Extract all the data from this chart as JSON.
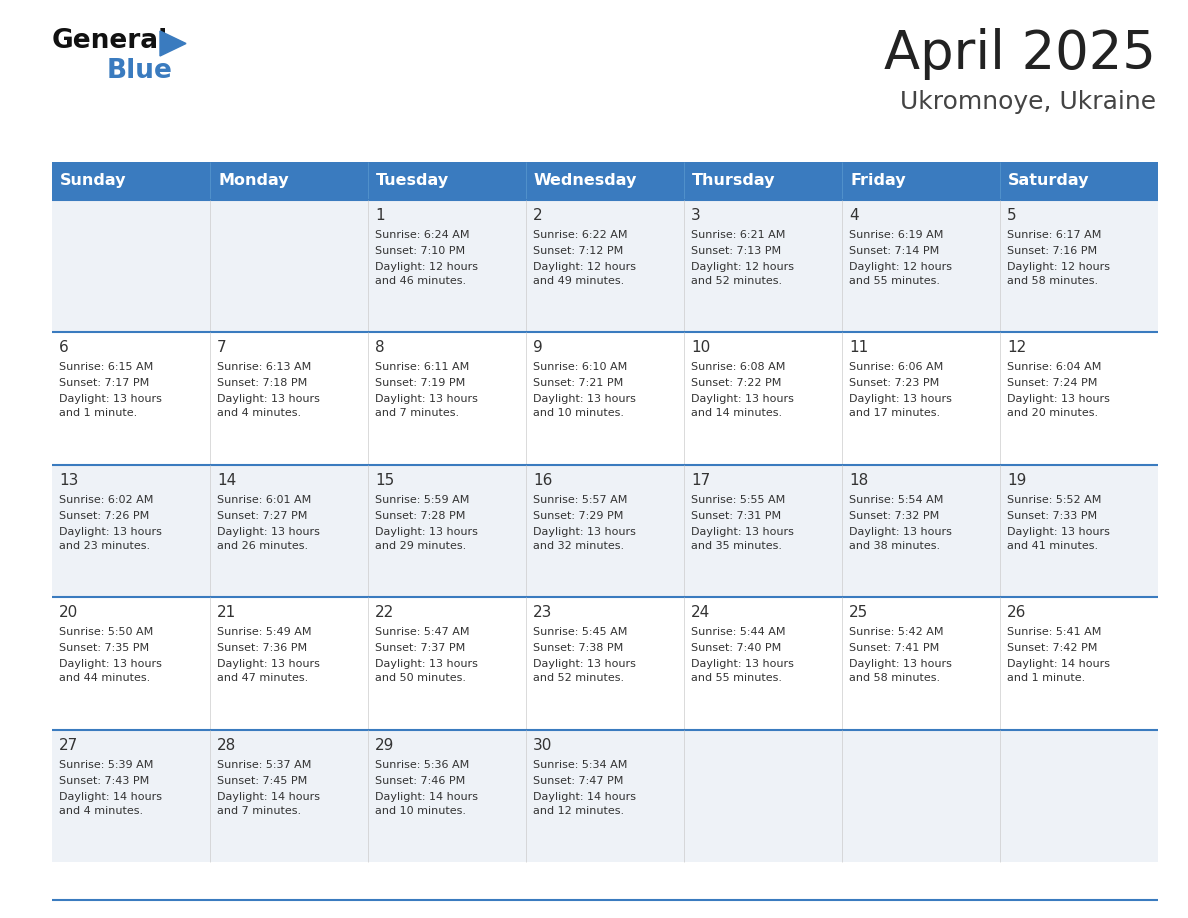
{
  "title": "April 2025",
  "subtitle": "Ukromnoye, Ukraine",
  "days_of_week": [
    "Sunday",
    "Monday",
    "Tuesday",
    "Wednesday",
    "Thursday",
    "Friday",
    "Saturday"
  ],
  "header_bg": "#3a7bbf",
  "header_text": "#ffffff",
  "row_bg_odd": "#eef2f7",
  "row_bg_even": "#ffffff",
  "cell_text_color": "#333333",
  "title_color": "#222222",
  "subtitle_color": "#444444",
  "divider_color": "#3a7bbf",
  "logo_black": "#111111",
  "logo_blue": "#2a7bbf",
  "calendar": [
    [
      null,
      null,
      {
        "day": 1,
        "sunrise": "6:24 AM",
        "sunset": "7:10 PM",
        "daylight": "12 hours and 46 minutes."
      },
      {
        "day": 2,
        "sunrise": "6:22 AM",
        "sunset": "7:12 PM",
        "daylight": "12 hours and 49 minutes."
      },
      {
        "day": 3,
        "sunrise": "6:21 AM",
        "sunset": "7:13 PM",
        "daylight": "12 hours and 52 minutes."
      },
      {
        "day": 4,
        "sunrise": "6:19 AM",
        "sunset": "7:14 PM",
        "daylight": "12 hours and 55 minutes."
      },
      {
        "day": 5,
        "sunrise": "6:17 AM",
        "sunset": "7:16 PM",
        "daylight": "12 hours and 58 minutes."
      }
    ],
    [
      {
        "day": 6,
        "sunrise": "6:15 AM",
        "sunset": "7:17 PM",
        "daylight": "13 hours and 1 minute."
      },
      {
        "day": 7,
        "sunrise": "6:13 AM",
        "sunset": "7:18 PM",
        "daylight": "13 hours and 4 minutes."
      },
      {
        "day": 8,
        "sunrise": "6:11 AM",
        "sunset": "7:19 PM",
        "daylight": "13 hours and 7 minutes."
      },
      {
        "day": 9,
        "sunrise": "6:10 AM",
        "sunset": "7:21 PM",
        "daylight": "13 hours and 10 minutes."
      },
      {
        "day": 10,
        "sunrise": "6:08 AM",
        "sunset": "7:22 PM",
        "daylight": "13 hours and 14 minutes."
      },
      {
        "day": 11,
        "sunrise": "6:06 AM",
        "sunset": "7:23 PM",
        "daylight": "13 hours and 17 minutes."
      },
      {
        "day": 12,
        "sunrise": "6:04 AM",
        "sunset": "7:24 PM",
        "daylight": "13 hours and 20 minutes."
      }
    ],
    [
      {
        "day": 13,
        "sunrise": "6:02 AM",
        "sunset": "7:26 PM",
        "daylight": "13 hours and 23 minutes."
      },
      {
        "day": 14,
        "sunrise": "6:01 AM",
        "sunset": "7:27 PM",
        "daylight": "13 hours and 26 minutes."
      },
      {
        "day": 15,
        "sunrise": "5:59 AM",
        "sunset": "7:28 PM",
        "daylight": "13 hours and 29 minutes."
      },
      {
        "day": 16,
        "sunrise": "5:57 AM",
        "sunset": "7:29 PM",
        "daylight": "13 hours and 32 minutes."
      },
      {
        "day": 17,
        "sunrise": "5:55 AM",
        "sunset": "7:31 PM",
        "daylight": "13 hours and 35 minutes."
      },
      {
        "day": 18,
        "sunrise": "5:54 AM",
        "sunset": "7:32 PM",
        "daylight": "13 hours and 38 minutes."
      },
      {
        "day": 19,
        "sunrise": "5:52 AM",
        "sunset": "7:33 PM",
        "daylight": "13 hours and 41 minutes."
      }
    ],
    [
      {
        "day": 20,
        "sunrise": "5:50 AM",
        "sunset": "7:35 PM",
        "daylight": "13 hours and 44 minutes."
      },
      {
        "day": 21,
        "sunrise": "5:49 AM",
        "sunset": "7:36 PM",
        "daylight": "13 hours and 47 minutes."
      },
      {
        "day": 22,
        "sunrise": "5:47 AM",
        "sunset": "7:37 PM",
        "daylight": "13 hours and 50 minutes."
      },
      {
        "day": 23,
        "sunrise": "5:45 AM",
        "sunset": "7:38 PM",
        "daylight": "13 hours and 52 minutes."
      },
      {
        "day": 24,
        "sunrise": "5:44 AM",
        "sunset": "7:40 PM",
        "daylight": "13 hours and 55 minutes."
      },
      {
        "day": 25,
        "sunrise": "5:42 AM",
        "sunset": "7:41 PM",
        "daylight": "13 hours and 58 minutes."
      },
      {
        "day": 26,
        "sunrise": "5:41 AM",
        "sunset": "7:42 PM",
        "daylight": "14 hours and 1 minute."
      }
    ],
    [
      {
        "day": 27,
        "sunrise": "5:39 AM",
        "sunset": "7:43 PM",
        "daylight": "14 hours and 4 minutes."
      },
      {
        "day": 28,
        "sunrise": "5:37 AM",
        "sunset": "7:45 PM",
        "daylight": "14 hours and 7 minutes."
      },
      {
        "day": 29,
        "sunrise": "5:36 AM",
        "sunset": "7:46 PM",
        "daylight": "14 hours and 10 minutes."
      },
      {
        "day": 30,
        "sunrise": "5:34 AM",
        "sunset": "7:47 PM",
        "daylight": "14 hours and 12 minutes."
      },
      null,
      null,
      null
    ]
  ]
}
